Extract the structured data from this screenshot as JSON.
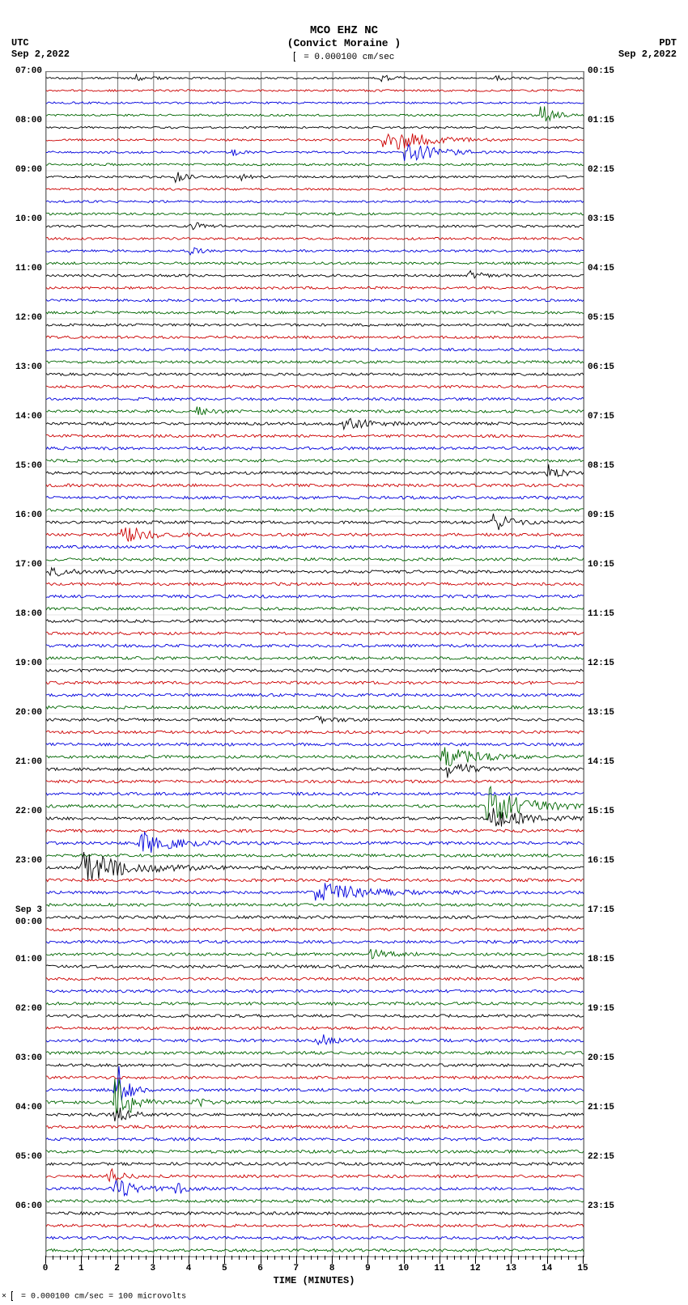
{
  "header": {
    "title": "MCO EHZ NC",
    "subtitle": "(Convict Moraine )",
    "scale_text": "= 0.000100 cm/sec",
    "tz_left": "UTC",
    "date_left": "Sep 2,2022",
    "tz_right": "PDT",
    "date_right": "Sep 2,2022"
  },
  "xaxis": {
    "label": "TIME (MINUTES)",
    "min": 0,
    "max": 15,
    "major_step": 1,
    "minor_per_major": 4
  },
  "footer": {
    "text": "= 0.000100 cm/sec =    100 microvolts",
    "prefix": "×"
  },
  "plot": {
    "background_color": "#ffffff",
    "grid_color": "#777777",
    "trace_colors": [
      "#000000",
      "#cc0000",
      "#0000dd",
      "#006600"
    ],
    "n_traces": 96,
    "rows_per_hour": 4,
    "left_labels": [
      {
        "row": 0,
        "text": "07:00"
      },
      {
        "row": 4,
        "text": "08:00"
      },
      {
        "row": 8,
        "text": "09:00"
      },
      {
        "row": 12,
        "text": "10:00"
      },
      {
        "row": 16,
        "text": "11:00"
      },
      {
        "row": 20,
        "text": "12:00"
      },
      {
        "row": 24,
        "text": "13:00"
      },
      {
        "row": 28,
        "text": "14:00"
      },
      {
        "row": 32,
        "text": "15:00"
      },
      {
        "row": 36,
        "text": "16:00"
      },
      {
        "row": 40,
        "text": "17:00"
      },
      {
        "row": 44,
        "text": "18:00"
      },
      {
        "row": 48,
        "text": "19:00"
      },
      {
        "row": 52,
        "text": "20:00"
      },
      {
        "row": 56,
        "text": "21:00"
      },
      {
        "row": 60,
        "text": "22:00"
      },
      {
        "row": 64,
        "text": "23:00"
      },
      {
        "row": 68,
        "text": "Sep 3"
      },
      {
        "row": 69,
        "text": "00:00"
      },
      {
        "row": 72,
        "text": "01:00"
      },
      {
        "row": 76,
        "text": "02:00"
      },
      {
        "row": 80,
        "text": "03:00"
      },
      {
        "row": 84,
        "text": "04:00"
      },
      {
        "row": 88,
        "text": "05:00"
      },
      {
        "row": 92,
        "text": "06:00"
      }
    ],
    "right_labels": [
      {
        "row": 0,
        "text": "00:15"
      },
      {
        "row": 4,
        "text": "01:15"
      },
      {
        "row": 8,
        "text": "02:15"
      },
      {
        "row": 12,
        "text": "03:15"
      },
      {
        "row": 16,
        "text": "04:15"
      },
      {
        "row": 20,
        "text": "05:15"
      },
      {
        "row": 24,
        "text": "06:15"
      },
      {
        "row": 28,
        "text": "07:15"
      },
      {
        "row": 32,
        "text": "08:15"
      },
      {
        "row": 36,
        "text": "09:15"
      },
      {
        "row": 40,
        "text": "10:15"
      },
      {
        "row": 44,
        "text": "11:15"
      },
      {
        "row": 48,
        "text": "12:15"
      },
      {
        "row": 52,
        "text": "13:15"
      },
      {
        "row": 56,
        "text": "14:15"
      },
      {
        "row": 60,
        "text": "15:15"
      },
      {
        "row": 64,
        "text": "16:15"
      },
      {
        "row": 68,
        "text": "17:15"
      },
      {
        "row": 72,
        "text": "18:15"
      },
      {
        "row": 76,
        "text": "19:15"
      },
      {
        "row": 80,
        "text": "20:15"
      },
      {
        "row": 84,
        "text": "21:15"
      },
      {
        "row": 88,
        "text": "22:15"
      },
      {
        "row": 92,
        "text": "23:15"
      }
    ],
    "noise_base": 1.2,
    "noise_row_start_extra": 0.6,
    "events": [
      {
        "row": 0,
        "x": 2.5,
        "w": 0.6,
        "amp": 4
      },
      {
        "row": 0,
        "x": 9.3,
        "w": 0.6,
        "amp": 4
      },
      {
        "row": 0,
        "x": 12.5,
        "w": 0.5,
        "amp": 3
      },
      {
        "row": 3,
        "x": 13.8,
        "w": 0.5,
        "amp": 15
      },
      {
        "row": 5,
        "x": 9.4,
        "w": 1.5,
        "amp": 18
      },
      {
        "row": 6,
        "x": 10.0,
        "w": 1.3,
        "amp": 14
      },
      {
        "row": 6,
        "x": 5.2,
        "w": 0.4,
        "amp": 4
      },
      {
        "row": 8,
        "x": 3.6,
        "w": 0.4,
        "amp": 8
      },
      {
        "row": 8,
        "x": 5.4,
        "w": 0.4,
        "amp": 5
      },
      {
        "row": 12,
        "x": 4.0,
        "w": 0.6,
        "amp": 6
      },
      {
        "row": 14,
        "x": 4.0,
        "w": 0.4,
        "amp": 5
      },
      {
        "row": 16,
        "x": 11.8,
        "w": 0.5,
        "amp": 8
      },
      {
        "row": 27,
        "x": 4.2,
        "w": 0.4,
        "amp": 7
      },
      {
        "row": 28,
        "x": 8.3,
        "w": 1.0,
        "amp": 8
      },
      {
        "row": 32,
        "x": 14.0,
        "w": 0.5,
        "amp": 10
      },
      {
        "row": 36,
        "x": 12.4,
        "w": 0.7,
        "amp": 14
      },
      {
        "row": 37,
        "x": 2.1,
        "w": 1.0,
        "amp": 14
      },
      {
        "row": 40,
        "x": 0.1,
        "w": 0.8,
        "amp": 6
      },
      {
        "row": 52,
        "x": 7.5,
        "w": 0.6,
        "amp": 5
      },
      {
        "row": 55,
        "x": 11.0,
        "w": 1.2,
        "amp": 18
      },
      {
        "row": 56,
        "x": 11.2,
        "w": 1.0,
        "amp": 10
      },
      {
        "row": 59,
        "x": 12.3,
        "w": 1.5,
        "amp": 26
      },
      {
        "row": 60,
        "x": 12.3,
        "w": 1.5,
        "amp": 14
      },
      {
        "row": 62,
        "x": 2.6,
        "w": 1.2,
        "amp": 18
      },
      {
        "row": 64,
        "x": 1.0,
        "w": 2.0,
        "amp": 20
      },
      {
        "row": 66,
        "x": 7.5,
        "w": 1.8,
        "amp": 16
      },
      {
        "row": 71,
        "x": 9.0,
        "w": 0.8,
        "amp": 6
      },
      {
        "row": 78,
        "x": 7.6,
        "w": 0.6,
        "amp": 10
      },
      {
        "row": 82,
        "x": 1.9,
        "w": 0.4,
        "amp": 50
      },
      {
        "row": 83,
        "x": 1.9,
        "w": 0.6,
        "amp": 40
      },
      {
        "row": 83,
        "x": 4.1,
        "w": 0.3,
        "amp": 12
      },
      {
        "row": 84,
        "x": 1.9,
        "w": 0.5,
        "amp": 14
      },
      {
        "row": 89,
        "x": 1.7,
        "w": 0.5,
        "amp": 12
      },
      {
        "row": 90,
        "x": 1.9,
        "w": 0.8,
        "amp": 14
      },
      {
        "row": 90,
        "x": 3.6,
        "w": 0.5,
        "amp": 8
      }
    ]
  }
}
